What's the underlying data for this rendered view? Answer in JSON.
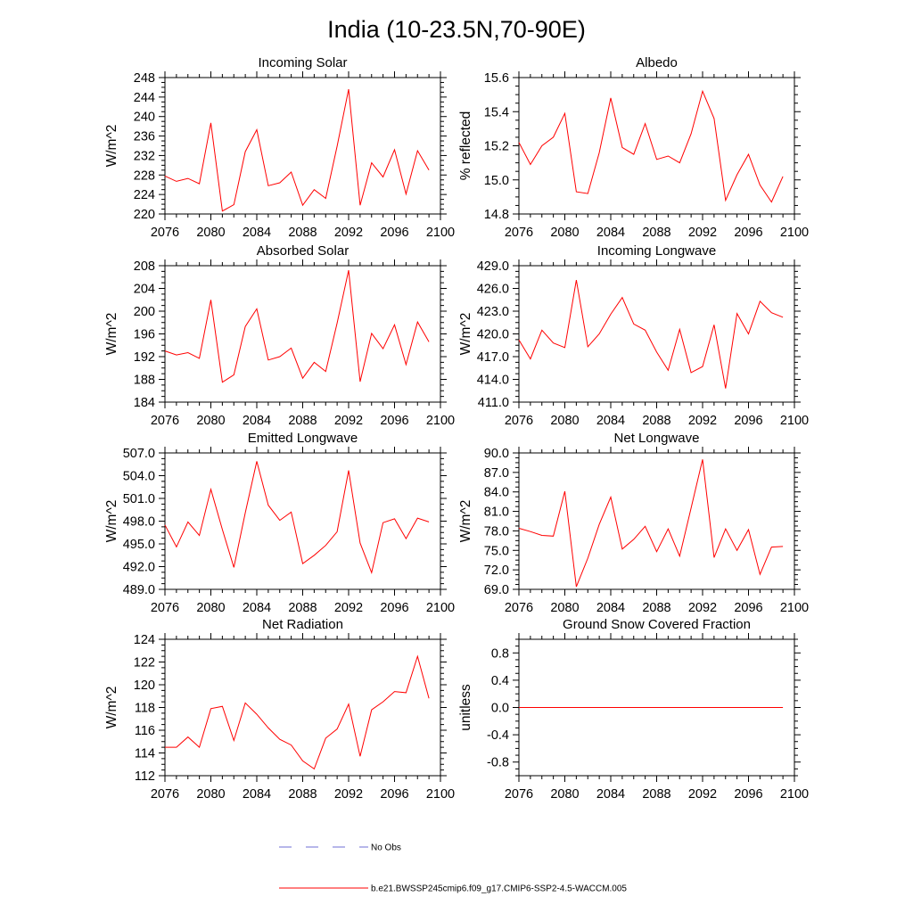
{
  "page": {
    "title": "India (10-23.5N,70-90E)"
  },
  "colors": {
    "series": "#ff0000",
    "obs": "#6f6fd6",
    "axis": "#000000"
  },
  "legend": {
    "obs_label": "No Obs",
    "model_label": "b.e21.BWSSP245cmip6.f09_g17.CMIP6-SSP2-4.5-WACCM.005"
  },
  "chart_data": [
    {
      "type": "line",
      "title": "Incoming Solar",
      "ylabel": "W/m^2",
      "xlabel": "",
      "xlim": [
        2076,
        2100
      ],
      "ylim": [
        220,
        248
      ],
      "xticks": [
        2076,
        2080,
        2084,
        2088,
        2092,
        2096,
        2100
      ],
      "xtick_labels": [
        "2076",
        "2080",
        "2084",
        "2088",
        "2092",
        "2096",
        "2100"
      ],
      "yticks": [
        220,
        224,
        228,
        232,
        236,
        240,
        244,
        248
      ],
      "ytick_labels": [
        "220",
        "224",
        "228",
        "232",
        "236",
        "240",
        "244",
        "248"
      ],
      "x": [
        2076,
        2077,
        2078,
        2079,
        2080,
        2081,
        2082,
        2083,
        2084,
        2085,
        2086,
        2087,
        2088,
        2089,
        2090,
        2091,
        2092,
        2093,
        2094,
        2095,
        2096,
        2097,
        2098,
        2099
      ],
      "values": [
        227.8,
        226.7,
        227.3,
        226.2,
        238.7,
        220.6,
        221.9,
        232.8,
        237.3,
        225.8,
        226.4,
        228.6,
        221.8,
        225.0,
        223.2,
        233.9,
        245.6,
        221.8,
        230.5,
        227.6,
        233.2,
        224.1,
        233.0,
        229.0
      ]
    },
    {
      "type": "line",
      "title": "Albedo",
      "ylabel": "% reflected",
      "xlabel": "",
      "xlim": [
        2076,
        2100
      ],
      "ylim": [
        14.8,
        15.6
      ],
      "xticks": [
        2076,
        2080,
        2084,
        2088,
        2092,
        2096,
        2100
      ],
      "xtick_labels": [
        "2076",
        "2080",
        "2084",
        "2088",
        "2092",
        "2096",
        "2100"
      ],
      "yticks": [
        14.8,
        15.0,
        15.2,
        15.4,
        15.6
      ],
      "ytick_labels": [
        "14.8",
        "15.0",
        "15.2",
        "15.4",
        "15.6"
      ],
      "x": [
        2076,
        2077,
        2078,
        2079,
        2080,
        2081,
        2082,
        2083,
        2084,
        2085,
        2086,
        2087,
        2088,
        2089,
        2090,
        2091,
        2092,
        2093,
        2094,
        2095,
        2096,
        2097,
        2098,
        2099
      ],
      "values": [
        15.22,
        15.09,
        15.2,
        15.25,
        15.39,
        14.93,
        14.92,
        15.16,
        15.48,
        15.19,
        15.15,
        15.33,
        15.12,
        15.14,
        15.1,
        15.27,
        15.52,
        15.36,
        14.88,
        15.03,
        15.15,
        14.97,
        14.87,
        15.02
      ]
    },
    {
      "type": "line",
      "title": "Absorbed Solar",
      "ylabel": "W/m^2",
      "xlabel": "",
      "xlim": [
        2076,
        2100
      ],
      "ylim": [
        184,
        208
      ],
      "xticks": [
        2076,
        2080,
        2084,
        2088,
        2092,
        2096,
        2100
      ],
      "xtick_labels": [
        "2076",
        "2080",
        "2084",
        "2088",
        "2092",
        "2096",
        "2100"
      ],
      "yticks": [
        184,
        188,
        192,
        196,
        200,
        204,
        208
      ],
      "ytick_labels": [
        "184",
        "188",
        "192",
        "196",
        "200",
        "204",
        "208"
      ],
      "x": [
        2076,
        2077,
        2078,
        2079,
        2080,
        2081,
        2082,
        2083,
        2084,
        2085,
        2086,
        2087,
        2088,
        2089,
        2090,
        2091,
        2092,
        2093,
        2094,
        2095,
        2096,
        2097,
        2098,
        2099
      ],
      "values": [
        193.0,
        192.3,
        192.7,
        191.7,
        202.0,
        187.5,
        188.8,
        197.3,
        200.4,
        191.4,
        192.0,
        193.5,
        188.2,
        191.0,
        189.4,
        197.9,
        207.2,
        187.6,
        196.1,
        193.4,
        197.6,
        190.6,
        198.1,
        194.6
      ]
    },
    {
      "type": "line",
      "title": "Incoming Longwave",
      "ylabel": "W/m^2",
      "xlabel": "",
      "xlim": [
        2076,
        2100
      ],
      "ylim": [
        411.0,
        429.0
      ],
      "xticks": [
        2076,
        2080,
        2084,
        2088,
        2092,
        2096,
        2100
      ],
      "xtick_labels": [
        "2076",
        "2080",
        "2084",
        "2088",
        "2092",
        "2096",
        "2100"
      ],
      "yticks": [
        411.0,
        414.0,
        417.0,
        420.0,
        423.0,
        426.0,
        429.0
      ],
      "ytick_labels": [
        "411.0",
        "414.0",
        "417.0",
        "420.0",
        "423.0",
        "426.0",
        "429.0"
      ],
      "x": [
        2076,
        2077,
        2078,
        2079,
        2080,
        2081,
        2082,
        2083,
        2084,
        2085,
        2086,
        2087,
        2088,
        2089,
        2090,
        2091,
        2092,
        2093,
        2094,
        2095,
        2096,
        2097,
        2098,
        2099
      ],
      "values": [
        419.2,
        416.7,
        420.5,
        418.8,
        418.2,
        427.1,
        418.3,
        420.0,
        422.6,
        424.8,
        421.3,
        420.5,
        417.6,
        415.2,
        420.6,
        414.9,
        415.7,
        421.2,
        412.8,
        422.7,
        420.0,
        424.3,
        422.8,
        422.2
      ]
    },
    {
      "type": "line",
      "title": "Emitted Longwave",
      "ylabel": "W/m^2",
      "xlabel": "",
      "xlim": [
        2076,
        2100
      ],
      "ylim": [
        489.0,
        507.0
      ],
      "xticks": [
        2076,
        2080,
        2084,
        2088,
        2092,
        2096,
        2100
      ],
      "xtick_labels": [
        "2076",
        "2080",
        "2084",
        "2088",
        "2092",
        "2096",
        "2100"
      ],
      "yticks": [
        489.0,
        492.0,
        495.0,
        498.0,
        501.0,
        504.0,
        507.0
      ],
      "ytick_labels": [
        "489.0",
        "492.0",
        "495.0",
        "498.0",
        "501.0",
        "504.0",
        "507.0"
      ],
      "x": [
        2076,
        2077,
        2078,
        2079,
        2080,
        2081,
        2082,
        2083,
        2084,
        2085,
        2086,
        2087,
        2088,
        2089,
        2090,
        2091,
        2092,
        2093,
        2094,
        2095,
        2096,
        2097,
        2098,
        2099
      ],
      "values": [
        497.5,
        494.6,
        497.9,
        496.1,
        502.2,
        496.9,
        491.9,
        499.1,
        505.9,
        500.1,
        498.1,
        499.2,
        492.4,
        493.5,
        494.8,
        496.6,
        504.7,
        495.1,
        491.2,
        497.8,
        498.3,
        495.7,
        498.4,
        497.9
      ]
    },
    {
      "type": "line",
      "title": "Net Longwave",
      "ylabel": "W/m^2",
      "xlabel": "",
      "xlim": [
        2076,
        2100
      ],
      "ylim": [
        69.0,
        90.0
      ],
      "xticks": [
        2076,
        2080,
        2084,
        2088,
        2092,
        2096,
        2100
      ],
      "xtick_labels": [
        "2076",
        "2080",
        "2084",
        "2088",
        "2092",
        "2096",
        "2100"
      ],
      "yticks": [
        69.0,
        72.0,
        75.0,
        78.0,
        81.0,
        84.0,
        87.0,
        90.0
      ],
      "ytick_labels": [
        "69.0",
        "72.0",
        "75.0",
        "78.0",
        "81.0",
        "84.0",
        "87.0",
        "90.0"
      ],
      "x": [
        2076,
        2077,
        2078,
        2079,
        2080,
        2081,
        2082,
        2083,
        2084,
        2085,
        2086,
        2087,
        2088,
        2089,
        2090,
        2091,
        2092,
        2093,
        2094,
        2095,
        2096,
        2097,
        2098,
        2099
      ],
      "values": [
        78.4,
        77.9,
        77.3,
        77.2,
        84.1,
        69.4,
        73.8,
        79.0,
        83.2,
        75.2,
        76.7,
        78.7,
        74.8,
        78.3,
        74.1,
        81.5,
        89.0,
        73.9,
        78.3,
        75.0,
        78.2,
        71.3,
        75.5,
        75.6
      ]
    },
    {
      "type": "line",
      "title": "Net Radiation",
      "ylabel": "W/m^2",
      "xlabel": "",
      "xlim": [
        2076,
        2100
      ],
      "ylim": [
        112,
        124
      ],
      "xticks": [
        2076,
        2080,
        2084,
        2088,
        2092,
        2096,
        2100
      ],
      "xtick_labels": [
        "2076",
        "2080",
        "2084",
        "2088",
        "2092",
        "2096",
        "2100"
      ],
      "yticks": [
        112,
        114,
        116,
        118,
        120,
        122,
        124
      ],
      "ytick_labels": [
        "112",
        "114",
        "116",
        "118",
        "120",
        "122",
        "124"
      ],
      "x": [
        2076,
        2077,
        2078,
        2079,
        2080,
        2081,
        2082,
        2083,
        2084,
        2085,
        2086,
        2087,
        2088,
        2089,
        2090,
        2091,
        2092,
        2093,
        2094,
        2095,
        2096,
        2097,
        2098,
        2099
      ],
      "values": [
        114.5,
        114.5,
        115.4,
        114.5,
        117.9,
        118.1,
        115.1,
        118.4,
        117.4,
        116.2,
        115.2,
        114.7,
        113.3,
        112.6,
        115.3,
        116.1,
        118.3,
        113.7,
        117.8,
        118.5,
        119.4,
        119.3,
        122.5,
        118.8
      ]
    },
    {
      "type": "line",
      "title": "Ground Snow Covered Fraction",
      "ylabel": "unitless",
      "xlabel": "",
      "xlim": [
        2076,
        2100
      ],
      "ylim": [
        -1.0,
        1.0
      ],
      "xticks": [
        2076,
        2080,
        2084,
        2088,
        2092,
        2096,
        2100
      ],
      "xtick_labels": [
        "2076",
        "2080",
        "2084",
        "2088",
        "2092",
        "2096",
        "2100"
      ],
      "yticks": [
        -0.8,
        -0.4,
        0.0,
        0.4,
        0.8
      ],
      "ytick_labels": [
        "-0.8",
        "-0.4",
        "0.0",
        "0.4",
        "0.8"
      ],
      "x": [
        2076,
        2077,
        2078,
        2079,
        2080,
        2081,
        2082,
        2083,
        2084,
        2085,
        2086,
        2087,
        2088,
        2089,
        2090,
        2091,
        2092,
        2093,
        2094,
        2095,
        2096,
        2097,
        2098,
        2099
      ],
      "values": [
        0,
        0,
        0,
        0,
        0,
        0,
        0,
        0,
        0,
        0,
        0,
        0,
        0,
        0,
        0,
        0,
        0,
        0,
        0,
        0,
        0,
        0,
        0,
        0
      ]
    }
  ]
}
